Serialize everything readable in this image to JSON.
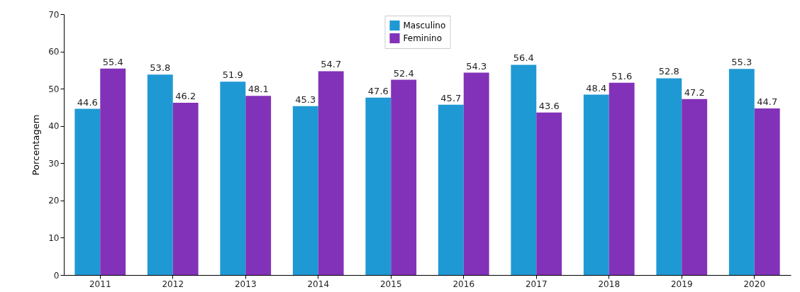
{
  "chart_data": {
    "type": "bar",
    "ylabel": "Porcentagem",
    "categories": [
      "2011",
      "2012",
      "2013",
      "2014",
      "2015",
      "2016",
      "2017",
      "2018",
      "2019",
      "2020"
    ],
    "series": [
      {
        "name": "Masculino",
        "color": "#1f99d4",
        "values": [
          44.6,
          53.8,
          51.9,
          45.3,
          47.6,
          45.7,
          56.4,
          48.4,
          52.8,
          55.3
        ]
      },
      {
        "name": "Feminino",
        "color": "#8232b8",
        "values": [
          55.4,
          46.2,
          48.1,
          54.7,
          52.4,
          54.3,
          43.6,
          51.6,
          47.2,
          44.7
        ]
      }
    ],
    "ylim": [
      0,
      70
    ],
    "yticks": [
      0,
      10,
      20,
      30,
      40,
      50,
      60,
      70
    ],
    "data_labels": true,
    "legend": "top"
  }
}
